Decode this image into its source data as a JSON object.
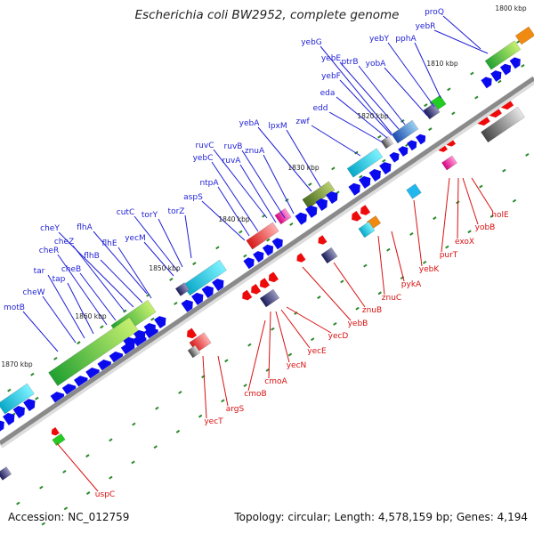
{
  "title": "Escherichia coli BW2952, complete genome",
  "footer": {
    "accession": "Accession: NC_012759",
    "summary": "Topology: circular; Length: 4,578,159 bp; Genes: 4,194"
  },
  "colors": {
    "forward_label": "#1f1fd6",
    "reverse_label": "#d81010",
    "forward_arrow": "#0a0aee",
    "reverse_arrow": "#ee0a0a",
    "backbone": "#888888",
    "tick": "#2a8a2a"
  },
  "kbp_labels": [
    "1800 kbp",
    "1810 kbp",
    "1820 kbp",
    "1830 kbp",
    "1840 kbp",
    "1850 kbp",
    "1860 kbp",
    "1870 kbp"
  ],
  "forward_genes": [
    "proQ",
    "yebR",
    "pphA",
    "yebY",
    "yobA",
    "ptrB",
    "yebE",
    "yebG",
    "yebF",
    "eda",
    "edd",
    "zwf",
    "lpxM",
    "yebA",
    "znuA",
    "ruvB",
    "ruvC",
    "ruvA",
    "yebC",
    "ntpA",
    "aspS",
    "torZ",
    "torY",
    "cutC",
    "yecM",
    "flhA",
    "flhE",
    "flhB",
    "cheY",
    "cheZ",
    "cheB",
    "cheR",
    "tap",
    "tar",
    "cheW",
    "motB"
  ],
  "reverse_genes": [
    "holE",
    "yobB",
    "exoX",
    "purT",
    "yebK",
    "pykA",
    "znuC",
    "znuB",
    "yebB",
    "yecD",
    "yecE",
    "yecN",
    "cmoA",
    "cmoB",
    "argS",
    "yecT",
    "uspC"
  ]
}
